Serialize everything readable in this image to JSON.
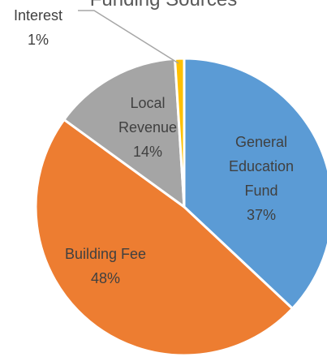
{
  "chart_data": {
    "type": "pie",
    "title": "Funding Sources",
    "categories": [
      "General Education Fund",
      "Building Fee",
      "Local Revenue",
      "Interest"
    ],
    "values": [
      37,
      48,
      14,
      1
    ],
    "value_labels": [
      "37%",
      "48%",
      "14%",
      "1%"
    ],
    "colors": [
      "#5b9bd5",
      "#ed7d31",
      "#a5a5a5",
      "#ffc000"
    ]
  }
}
